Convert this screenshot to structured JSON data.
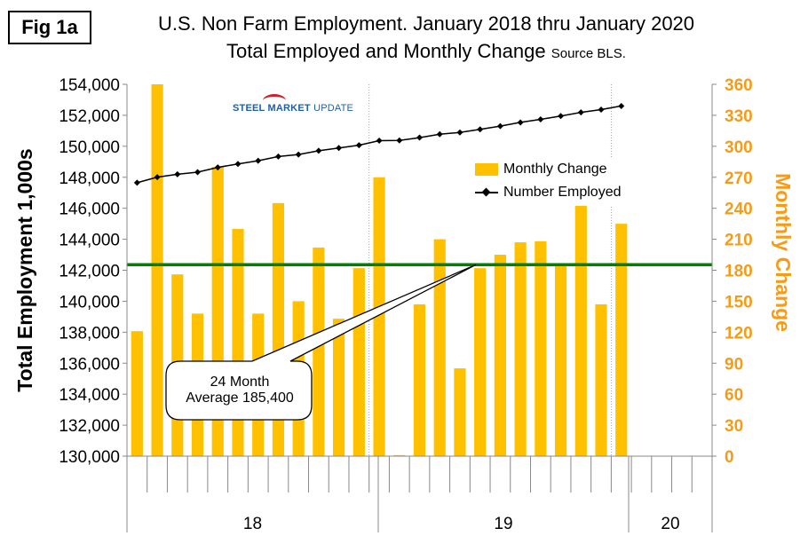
{
  "figure_label": "Fig 1a",
  "title_line1": "U.S. Non Farm Employment. January 2018 thru January 2020",
  "title_line2": "Total Employed and Monthly Change",
  "title_source": "Source BLS.",
  "logo": {
    "part1": "STEEL",
    "part2": "MARKET",
    "part3": "UPDATE"
  },
  "annotation": {
    "line1": "24 Month",
    "line2": "Average 185,400"
  },
  "colors": {
    "bar": "#ffc000",
    "line": "#000000",
    "average": "#008000",
    "right_axis": "#f79b16",
    "grid": "#a0a0a0"
  },
  "chart_data": {
    "type": "bar",
    "title": "U.S. Non Farm Employment. January 2018 thru January 2020",
    "subtitle": "Total Employed and Monthly Change Source BLS.",
    "ylabel": "Total Employment 1,000s",
    "y2label": "Monthly Change",
    "ylim": [
      130000,
      154000
    ],
    "y2lim": [
      0,
      360
    ],
    "y_ticks": [
      "130,000",
      "132,000",
      "134,000",
      "136,000",
      "138,000",
      "140,000",
      "142,000",
      "144,000",
      "146,000",
      "148,000",
      "150,000",
      "152,000",
      "154,000"
    ],
    "y2_ticks": [
      "0",
      "30",
      "60",
      "90",
      "120",
      "150",
      "180",
      "210",
      "240",
      "270",
      "300",
      "330",
      "360"
    ],
    "year_labels": [
      "18",
      "19",
      "20"
    ],
    "slots": 29,
    "series": [
      {
        "name": "Monthly Change",
        "axis": "right",
        "type": "bar",
        "values": [
          121,
          360,
          176,
          138,
          280,
          220,
          138,
          245,
          150,
          202,
          133,
          182,
          270,
          1,
          147,
          210,
          85,
          182,
          195,
          207,
          208,
          185,
          245,
          147,
          225
        ]
      },
      {
        "name": "Number Employed",
        "axis": "left",
        "type": "line",
        "values": [
          147650,
          148010,
          148190,
          148330,
          148640,
          148860,
          149070,
          149340,
          149470,
          149710,
          149890,
          150070,
          150360,
          150380,
          150560,
          150780,
          150890,
          151090,
          151300,
          151540,
          151740,
          151950,
          152190,
          152370,
          152600
        ]
      }
    ],
    "average": {
      "name": "24 Month Average",
      "value": 185.4,
      "axis": "right"
    },
    "legend": {
      "position": "top-right",
      "entries": [
        "Monthly Change",
        "Number Employed"
      ]
    }
  }
}
